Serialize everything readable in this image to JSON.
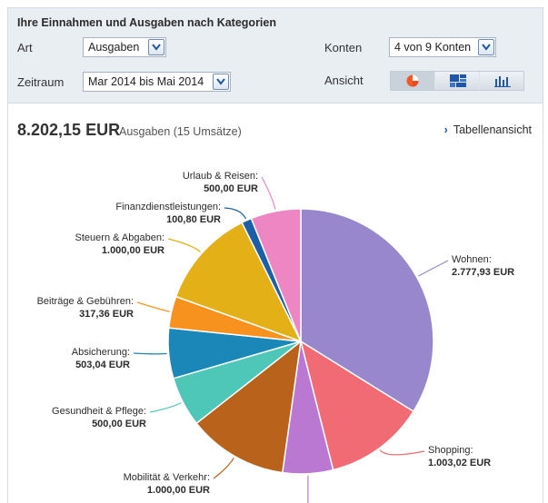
{
  "filter": {
    "title": "Ihre Einnahmen und Ausgaben nach Kategorien",
    "art_label": "Art",
    "art_value": "Ausgaben",
    "konten_label": "Konten",
    "konten_value": "4 von 9 Konten",
    "zeitraum_label": "Zeitraum",
    "zeitraum_value": "Mar 2014 bis Mai 2014",
    "ansicht_label": "Ansicht",
    "view_options": [
      "pie-view",
      "treemap-view",
      "bar-view"
    ],
    "active_view": "pie-view"
  },
  "summary": {
    "total": "8.202,15 EUR",
    "label": "Ausgaben (15 Umsätze)",
    "table_link": "Tabellenansicht"
  },
  "chart_data": {
    "type": "pie",
    "currency": "EUR",
    "slices": [
      {
        "label": "Wohnen:",
        "value_text": "2.777,93 EUR",
        "value": 2777.93,
        "color": "#9887cc"
      },
      {
        "label": "Shopping:",
        "value_text": "1.003,02 EUR",
        "value": 1003.02,
        "color": "#f06b73"
      },
      {
        "label": "",
        "value_text": "",
        "value": 503.0,
        "color": "#bb78d2"
      },
      {
        "label": "Mobilität & Verkehr:",
        "value_text": "1.000,00 EUR",
        "value": 1000.0,
        "color": "#b8621b"
      },
      {
        "label": "Gesundheit & Pflege:",
        "value_text": "500,00 EUR",
        "value": 500.0,
        "color": "#4ec6b8"
      },
      {
        "label": "Absicherung:",
        "value_text": "503,04 EUR",
        "value": 503.04,
        "color": "#1a87b8"
      },
      {
        "label": "Beiträge & Gebühren:",
        "value_text": "317,36 EUR",
        "value": 317.36,
        "color": "#f7921e"
      },
      {
        "label": "Steuern & Abgaben:",
        "value_text": "1.000,00 EUR",
        "value": 1000.0,
        "color": "#e3b017"
      },
      {
        "label": "Finanzdienstleistungen:",
        "value_text": "100,80 EUR",
        "value": 100.8,
        "color": "#1d5fa6"
      },
      {
        "label": "Urlaub & Reisen:",
        "value_text": "500,00 EUR",
        "value": 500.0,
        "color": "#ef86c4"
      }
    ]
  }
}
